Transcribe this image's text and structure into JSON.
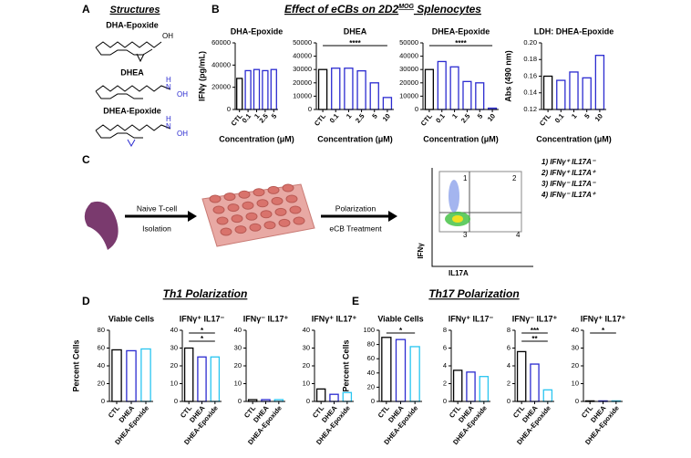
{
  "panel_labels": [
    "A",
    "B",
    "C",
    "D",
    "E"
  ],
  "structures": {
    "title": "Structures",
    "compounds": [
      {
        "name": "DHA-Epoxide",
        "atoms": [
          "OH"
        ]
      },
      {
        "name": "DHEA",
        "atoms": [
          "H",
          "N",
          "OH"
        ]
      },
      {
        "name": "DHEA-Epoxide",
        "atoms": [
          "H",
          "N",
          "OH"
        ]
      }
    ]
  },
  "section_titles": {
    "B": [
      "Effect of eCBs on 2D2",
      "MOG",
      " Splenocytes"
    ],
    "D": "Th1 Polarization",
    "E": "Th17 Polarization"
  },
  "diagram": {
    "step1": [
      "Naive T-cell",
      "Isolation"
    ],
    "step2": [
      "Polarization",
      "eCB Treatment"
    ],
    "flow": {
      "quadrants": [
        "1",
        "2",
        "3",
        "4"
      ],
      "y_axis": "IFNγ",
      "x_axis": "IL17A"
    },
    "legend": [
      "1) IFNγ⁺ IL17A⁻",
      "2) IFNγ⁺ IL17A⁺",
      "3) IFNγ⁻ IL17A⁻",
      "4) IFNγ⁻ IL17A⁺"
    ]
  },
  "chart_data": [
    {
      "type": "bar",
      "title": "DHA-Epoxide",
      "ylabel": "IFNγ (pg/mL)",
      "xlabel": "Concentration (μM)",
      "categories": [
        "CTL",
        "0.1",
        "1",
        "2.5",
        "5"
      ],
      "values": [
        28000,
        35000,
        36000,
        35000,
        36000
      ],
      "colors": [
        "#000000",
        "#2b2bd0",
        "#2b2bd0",
        "#2b2bd0",
        "#2b2bd0"
      ],
      "ylim": [
        0,
        60000
      ],
      "yticks": [
        0,
        20000,
        40000,
        60000
      ],
      "annotations": []
    },
    {
      "type": "bar",
      "title": "DHEA",
      "xlabel": "Concentration (μM)",
      "categories": [
        "CTL",
        "0.1",
        "1",
        "2.5",
        "5",
        "10"
      ],
      "values": [
        30000,
        31000,
        31000,
        29000,
        20000,
        9000
      ],
      "colors": [
        "#000000",
        "#2b2bd0",
        "#2b2bd0",
        "#2b2bd0",
        "#2b2bd0",
        "#2b2bd0"
      ],
      "ylim": [
        0,
        50000
      ],
      "yticks": [
        0,
        10000,
        20000,
        30000,
        40000,
        50000
      ],
      "annotations": [
        "****"
      ]
    },
    {
      "type": "bar",
      "title": "DHEA-Epoxide",
      "xlabel": "Concentration (μM)",
      "categories": [
        "CTL",
        "0.1",
        "1",
        "2.5",
        "5",
        "10"
      ],
      "values": [
        30000,
        36000,
        32000,
        21000,
        20000,
        1000
      ],
      "colors": [
        "#000000",
        "#2b2bd0",
        "#2b2bd0",
        "#2b2bd0",
        "#2b2bd0",
        "#2b2bd0"
      ],
      "ylim": [
        0,
        50000
      ],
      "yticks": [
        0,
        10000,
        20000,
        30000,
        40000,
        50000
      ],
      "annotations": [
        "****"
      ]
    },
    {
      "type": "bar",
      "title": "LDH: DHEA-Epoxide",
      "ylabel": "Abs (490 nm)",
      "xlabel": "Concentration (μM)",
      "categories": [
        "CTL",
        "0.1",
        "1",
        "5",
        "10"
      ],
      "values": [
        0.16,
        0.155,
        0.165,
        0.158,
        0.185
      ],
      "colors": [
        "#000000",
        "#2b2bd0",
        "#2b2bd0",
        "#2b2bd0",
        "#2b2bd0"
      ],
      "ylim": [
        0.12,
        0.2
      ],
      "yticks": [
        0.12,
        0.14,
        0.16,
        0.18,
        {
          "value": 0.2,
          "label": "0.20"
        }
      ],
      "annotations": []
    },
    {
      "type": "bar",
      "title": "Viable Cells",
      "ylabel": "Percent Cells",
      "categories": [
        "CTL",
        "DHEA",
        "DHEA-Epoxide"
      ],
      "values": [
        58,
        57,
        59
      ],
      "colors": [
        "#000000",
        "#2b2bd0",
        "#29c5f0"
      ],
      "ylim": [
        0,
        80
      ],
      "yticks": [
        0,
        20,
        40,
        60,
        80
      ],
      "annotations": []
    },
    {
      "type": "bar",
      "title": "IFNγ⁺ IL17⁻",
      "categories": [
        "CTL",
        "DHEA",
        "DHEA-Epoxide"
      ],
      "values": [
        30,
        25,
        25
      ],
      "colors": [
        "#000000",
        "#2b2bd0",
        "#29c5f0"
      ],
      "ylim": [
        0,
        40
      ],
      "yticks": [
        0,
        10,
        20,
        30,
        40
      ],
      "annotations": [
        "*",
        "*"
      ]
    },
    {
      "type": "bar",
      "title": "IFNγ⁻ IL17⁺",
      "categories": [
        "CTL",
        "DHEA",
        "DHEA-Epoxide"
      ],
      "values": [
        1,
        1,
        1
      ],
      "colors": [
        "#000000",
        "#2b2bd0",
        "#29c5f0"
      ],
      "ylim": [
        0,
        40
      ],
      "yticks": [
        0,
        10,
        20,
        30,
        40
      ],
      "annotations": []
    },
    {
      "type": "bar",
      "title": "IFNγ⁺ IL17⁺",
      "categories": [
        "CTL",
        "DHEA",
        "DHEA-Epoxide"
      ],
      "values": [
        7,
        4,
        5
      ],
      "colors": [
        "#000000",
        "#2b2bd0",
        "#29c5f0"
      ],
      "ylim": [
        0,
        40
      ],
      "yticks": [
        0,
        10,
        20,
        30,
        40
      ],
      "annotations": []
    },
    {
      "type": "bar",
      "title": "Viable Cells",
      "ylabel": "Percent Cells",
      "categories": [
        "CTL",
        "DHEA",
        "DHEA-Epoxide"
      ],
      "values": [
        90,
        87,
        77
      ],
      "colors": [
        "#000000",
        "#2b2bd0",
        "#29c5f0"
      ],
      "ylim": [
        0,
        100
      ],
      "yticks": [
        0,
        20,
        40,
        60,
        80,
        100
      ],
      "annotations": [
        "*"
      ]
    },
    {
      "type": "bar",
      "title": "IFNγ⁺ IL17⁻",
      "categories": [
        "CTL",
        "DHEA",
        "DHEA-Epoxide"
      ],
      "values": [
        3.5,
        3.3,
        2.8
      ],
      "colors": [
        "#000000",
        "#2b2bd0",
        "#29c5f0"
      ],
      "ylim": [
        0,
        8
      ],
      "yticks": [
        0,
        2,
        4,
        6,
        8
      ],
      "annotations": []
    },
    {
      "type": "bar",
      "title": "IFNγ⁻ IL17⁺",
      "categories": [
        "CTL",
        "DHEA",
        "DHEA-Epoxide"
      ],
      "values": [
        5.6,
        4.2,
        1.3
      ],
      "colors": [
        "#000000",
        "#2b2bd0",
        "#29c5f0"
      ],
      "ylim": [
        0,
        8
      ],
      "yticks": [
        0,
        2,
        4,
        6,
        8
      ],
      "annotations": [
        "***",
        "**"
      ]
    },
    {
      "type": "bar",
      "title": "IFNγ⁺ IL17⁺",
      "categories": [
        "CTL",
        "DHEA",
        "DHEA-Epoxide"
      ],
      "values": [
        0.3,
        0.3,
        0.3
      ],
      "colors": [
        "#000000",
        "#2b2bd0",
        "#29c5f0"
      ],
      "ylim": [
        0,
        40
      ],
      "yticks": [
        0,
        10,
        20,
        30,
        40
      ],
      "annotations": [
        "*"
      ]
    }
  ]
}
